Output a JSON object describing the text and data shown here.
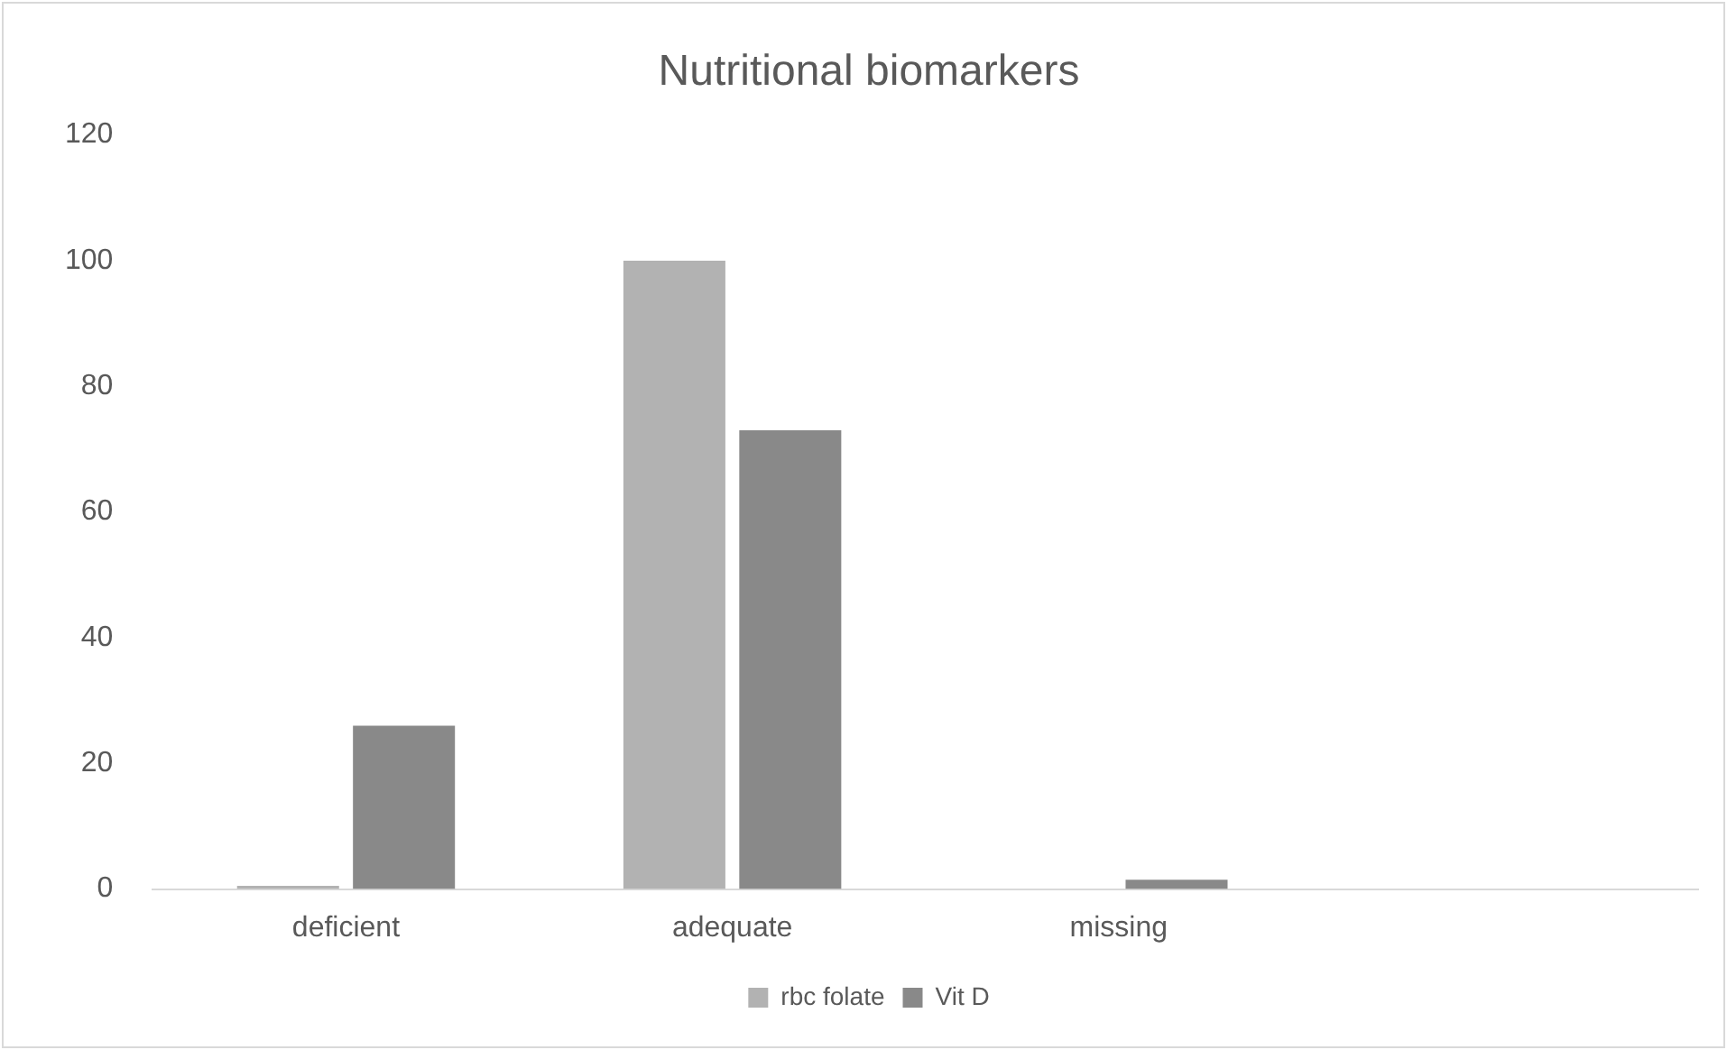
{
  "chart_data": {
    "type": "bar",
    "title": "Nutritional biomarkers",
    "categories": [
      "deficient",
      "adequate",
      "missing",
      null
    ],
    "series": [
      {
        "name": "rbc folate",
        "color": "#b2b2b2",
        "values": [
          0.5,
          100,
          0,
          null
        ]
      },
      {
        "name": "Vit D",
        "color": "#898989",
        "values": [
          26,
          73,
          1.5,
          null
        ]
      }
    ],
    "ylim": [
      0,
      120
    ],
    "yticks": [
      0,
      20,
      40,
      60,
      80,
      100,
      120
    ],
    "grid": false,
    "legend": "bottom"
  }
}
